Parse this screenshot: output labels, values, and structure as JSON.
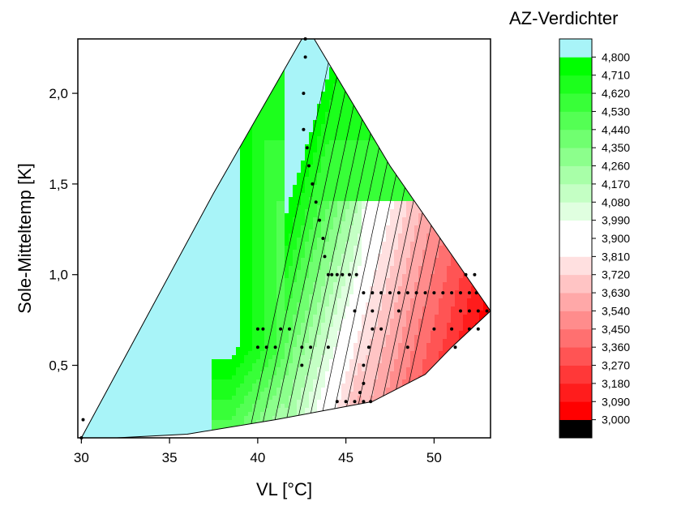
{
  "chart_data": {
    "type": "heatmap",
    "subtype": "filled contour",
    "xlabel": "VL [°C]",
    "ylabel": "Sole-Mitteltemp [K]",
    "xlim": [
      29.8,
      53.2
    ],
    "ylim": [
      0.1,
      2.3
    ],
    "xticks": [
      30,
      35,
      40,
      45,
      50
    ],
    "xtick_labels": [
      "30",
      "35",
      "40",
      "45",
      "50"
    ],
    "yticks": [
      0.5,
      1.0,
      1.5,
      2.0
    ],
    "ytick_labels": [
      "0,5",
      "1,0",
      "1,5",
      "2,0"
    ],
    "grid": false,
    "colorbar": {
      "title": "AZ-Verdichter",
      "position": "right",
      "levels": [
        "3,000",
        "3,090",
        "3,180",
        "3,270",
        "3,360",
        "3,450",
        "3,540",
        "3,630",
        "3,720",
        "3,810",
        "3,900",
        "3,990",
        "4,080",
        "4,170",
        "4,260",
        "4,350",
        "4,440",
        "4,530",
        "4,620",
        "4,710",
        "4,800"
      ],
      "colors": [
        "#000000",
        "#ff0000",
        "#ff1c1c",
        "#ff3838",
        "#ff5454",
        "#ff7070",
        "#ff8c8c",
        "#ffa8a8",
        "#ffc4c4",
        "#ffe0e0",
        "#ffffff",
        "#ffffff",
        "#e0ffe0",
        "#c4ffc4",
        "#a8ffa8",
        "#8cff8c",
        "#70ff70",
        "#54ff54",
        "#38ff38",
        "#1cff1c",
        "#00ff00",
        "#a8f4f8"
      ]
    },
    "domain_outline": [
      [
        30.0,
        0.1
      ],
      [
        37.5,
        1.45
      ],
      [
        42.5,
        2.3
      ],
      [
        43.2,
        2.3
      ],
      [
        47.5,
        1.6
      ],
      [
        53.2,
        0.8
      ],
      [
        51.0,
        0.6
      ],
      [
        49.5,
        0.45
      ],
      [
        46.5,
        0.3
      ],
      [
        41.0,
        0.2
      ],
      [
        36.0,
        0.12
      ],
      [
        32.0,
        0.1
      ]
    ],
    "measurement_points": [
      [
        30.1,
        0.2
      ],
      [
        30.0,
        0.1
      ],
      [
        42.7,
        2.3
      ],
      [
        42.7,
        2.2
      ],
      [
        42.6,
        2.0
      ],
      [
        42.6,
        1.8
      ],
      [
        42.8,
        1.7
      ],
      [
        42.9,
        1.6
      ],
      [
        43.1,
        1.5
      ],
      [
        43.3,
        1.4
      ],
      [
        43.5,
        1.3
      ],
      [
        43.7,
        1.2
      ],
      [
        43.8,
        1.1
      ],
      [
        44.0,
        1.0
      ],
      [
        44.2,
        1.0
      ],
      [
        44.5,
        1.0
      ],
      [
        44.8,
        1.0
      ],
      [
        45.2,
        1.0
      ],
      [
        45.6,
        1.0
      ],
      [
        46.0,
        0.9
      ],
      [
        46.5,
        0.9
      ],
      [
        47.0,
        0.9
      ],
      [
        47.5,
        0.9
      ],
      [
        48.0,
        0.9
      ],
      [
        48.5,
        0.9
      ],
      [
        49.0,
        0.9
      ],
      [
        49.5,
        0.9
      ],
      [
        50.0,
        0.9
      ],
      [
        50.5,
        0.9
      ],
      [
        51.0,
        0.9
      ],
      [
        51.5,
        0.9
      ],
      [
        52.0,
        0.9
      ],
      [
        52.4,
        0.9
      ],
      [
        52.3,
        1.0
      ],
      [
        51.8,
        1.0
      ],
      [
        45.5,
        0.8
      ],
      [
        46.5,
        0.8
      ],
      [
        48.0,
        0.8
      ],
      [
        51.5,
        0.8
      ],
      [
        52.0,
        0.8
      ],
      [
        52.5,
        0.8
      ],
      [
        53.0,
        0.8
      ],
      [
        40.0,
        0.7
      ],
      [
        40.3,
        0.7
      ],
      [
        41.3,
        0.7
      ],
      [
        41.8,
        0.7
      ],
      [
        46.5,
        0.7
      ],
      [
        47.0,
        0.7
      ],
      [
        50.0,
        0.7
      ],
      [
        51.0,
        0.7
      ],
      [
        52.0,
        0.7
      ],
      [
        52.5,
        0.7
      ],
      [
        40.0,
        0.6
      ],
      [
        40.5,
        0.6
      ],
      [
        41.0,
        0.6
      ],
      [
        42.5,
        0.6
      ],
      [
        43.0,
        0.6
      ],
      [
        44.0,
        0.6
      ],
      [
        46.3,
        0.6
      ],
      [
        48.5,
        0.6
      ],
      [
        51.2,
        0.6
      ],
      [
        42.5,
        0.5
      ],
      [
        46.0,
        0.5
      ],
      [
        46.0,
        0.4
      ],
      [
        45.8,
        0.35
      ],
      [
        44.5,
        0.3
      ],
      [
        45.0,
        0.3
      ],
      [
        45.5,
        0.3
      ],
      [
        46.0,
        0.3
      ],
      [
        46.4,
        0.3
      ]
    ]
  }
}
